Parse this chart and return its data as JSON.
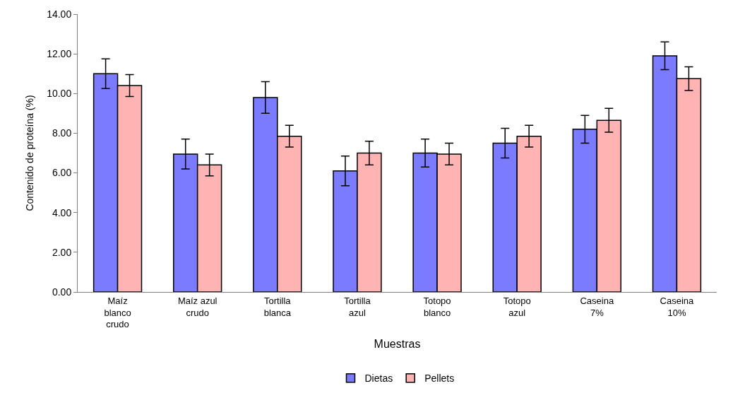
{
  "chart_data": {
    "type": "bar",
    "xlabel": "Muestras",
    "ylabel": "Contenido de proteína (%)",
    "categories": [
      "Maíz blanco crudo",
      "Maíz azul crudo",
      "Tortilla blanca",
      "Tortilla azul",
      "Totopo blanco",
      "Totopo azul",
      "Caseina 7%",
      "Caseina 10%"
    ],
    "series": [
      {
        "name": "Dietas",
        "color": "#7b7bff",
        "values": [
          11.0,
          6.95,
          9.8,
          6.1,
          7.0,
          7.5,
          8.2,
          11.9
        ],
        "errors": [
          0.75,
          0.75,
          0.8,
          0.75,
          0.7,
          0.75,
          0.7,
          0.7
        ]
      },
      {
        "name": "Pellets",
        "color": "#ffb3b3",
        "values": [
          10.4,
          6.4,
          7.85,
          7.0,
          6.95,
          7.85,
          8.65,
          10.75
        ],
        "errors": [
          0.55,
          0.55,
          0.55,
          0.6,
          0.55,
          0.55,
          0.6,
          0.6
        ]
      }
    ],
    "ylim": [
      0,
      14
    ],
    "yticks": [
      {
        "value": 0,
        "label": "0.00"
      },
      {
        "value": 2,
        "label": "2.00"
      },
      {
        "value": 4,
        "label": "4.00"
      },
      {
        "value": 6,
        "label": "6.00"
      },
      {
        "value": 8,
        "label": "8.00"
      },
      {
        "value": 10,
        "label": "10.00"
      },
      {
        "value": 12,
        "label": "12.00"
      },
      {
        "value": 14,
        "label": "14.00"
      }
    ],
    "legend": "bottom"
  }
}
